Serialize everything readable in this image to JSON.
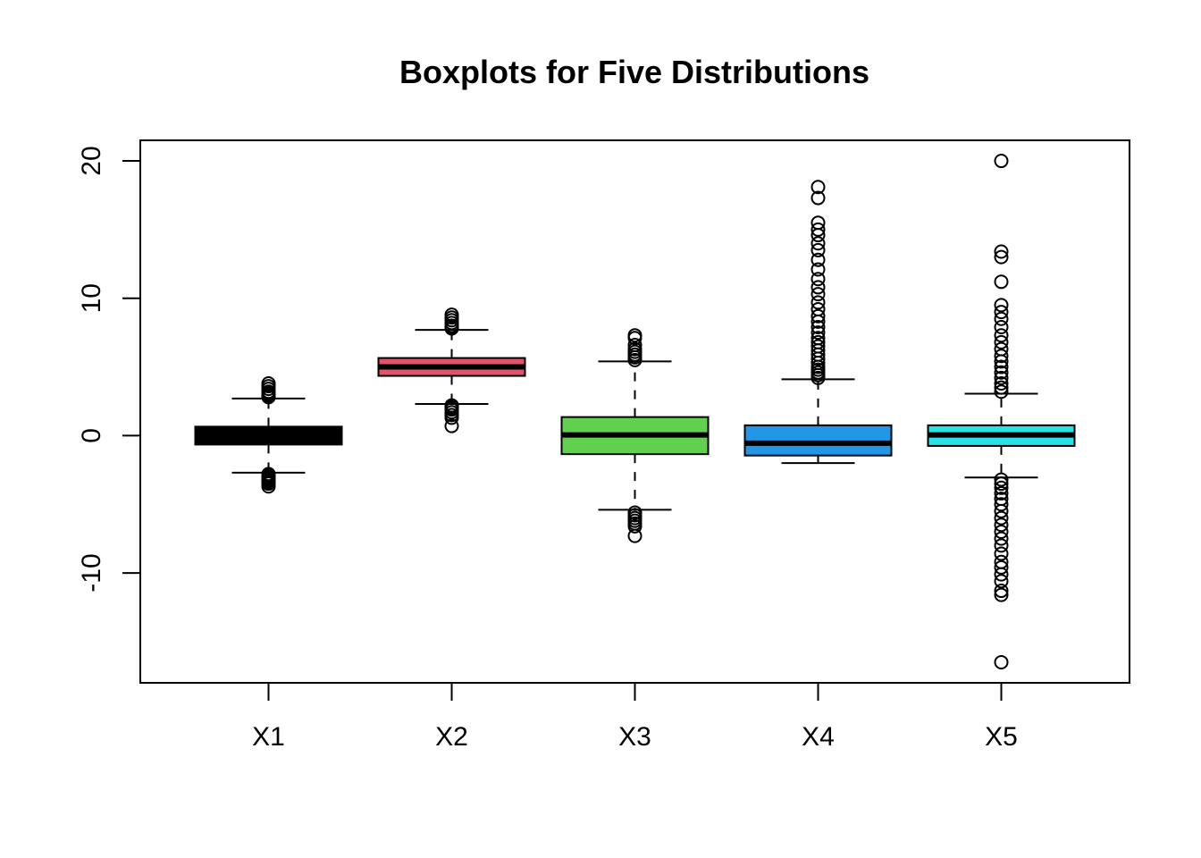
{
  "chart_data": {
    "type": "boxplot",
    "title": "Boxplots for Five Distributions",
    "xlabel": "",
    "ylabel": "",
    "ylim": [
      -18,
      21.5
    ],
    "y_ticks": [
      -10,
      0,
      10,
      20
    ],
    "y_tick_labels": [
      "-10",
      "0",
      "10",
      "20"
    ],
    "grid": false,
    "legend": "none",
    "median_color": "#000000",
    "categories": [
      "X1",
      "X2",
      "X3",
      "X4",
      "X5"
    ],
    "series": [
      {
        "color": "#000000",
        "whisker_low": -2.7,
        "q1": -0.65,
        "median": 0.0,
        "q3": 0.65,
        "whisker_high": 2.7,
        "outliers": [
          -3.7,
          -3.5,
          -3.4,
          -3.3,
          -3.2,
          -3.1,
          -3.0,
          -2.9,
          -2.8,
          2.8,
          2.9,
          3.0,
          3.1,
          3.2,
          3.4,
          3.6,
          3.8
        ]
      },
      {
        "color": "#DF536B",
        "whisker_low": 2.3,
        "q1": 4.35,
        "median": 5.0,
        "q3": 5.65,
        "whisker_high": 7.7,
        "outliers": [
          0.7,
          1.3,
          1.5,
          1.7,
          1.9,
          2.0,
          2.1,
          2.2,
          7.8,
          7.9,
          8.0,
          8.2,
          8.4,
          8.6,
          8.8
        ]
      },
      {
        "color": "#61D04F",
        "whisker_low": -5.4,
        "q1": -1.35,
        "median": 0.05,
        "q3": 1.35,
        "whisker_high": 5.4,
        "outliers": [
          -7.3,
          -6.6,
          -6.4,
          -6.2,
          -6.0,
          -5.8,
          -5.6,
          5.5,
          5.7,
          5.9,
          6.1,
          6.3,
          6.6,
          7.1,
          7.3
        ]
      },
      {
        "color": "#2297E6",
        "whisker_low": -2.0,
        "q1": -1.45,
        "median": -0.55,
        "q3": 0.75,
        "whisker_high": 4.1,
        "outliers": [
          4.2,
          4.4,
          4.6,
          4.8,
          5.0,
          5.3,
          5.6,
          5.9,
          6.2,
          6.5,
          6.8,
          7.1,
          7.5,
          7.9,
          8.3,
          8.7,
          9.2,
          9.7,
          10.3,
          10.8,
          11.4,
          12.1,
          12.8,
          13.5,
          14.0,
          14.6,
          15.0,
          15.5,
          17.3,
          18.1
        ]
      },
      {
        "color": "#28E2E5",
        "whisker_low": -3.05,
        "q1": -0.75,
        "median": 0.05,
        "q3": 0.75,
        "whisker_high": 3.05,
        "outliers": [
          -16.5,
          -11.6,
          -11.3,
          -10.6,
          -10.1,
          -9.6,
          -9.2,
          -8.6,
          -8.0,
          -7.5,
          -7.0,
          -6.5,
          -6.0,
          -5.5,
          -5.0,
          -4.6,
          -4.2,
          -3.8,
          -3.5,
          -3.2,
          3.2,
          3.5,
          3.8,
          4.2,
          4.6,
          5.0,
          5.4,
          5.8,
          6.3,
          6.8,
          7.3,
          7.9,
          8.5,
          9.0,
          9.5,
          11.2,
          13.0,
          13.4,
          20.0
        ]
      }
    ]
  }
}
